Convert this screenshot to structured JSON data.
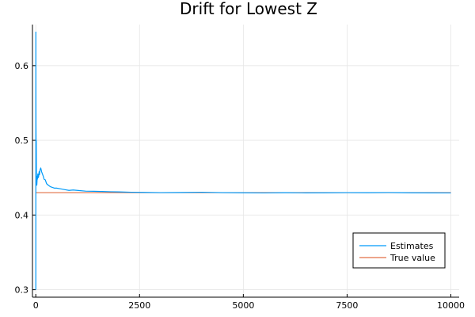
{
  "chart_data": {
    "type": "line",
    "title": "Drift for Lowest Z",
    "xlabel": "",
    "ylabel": "",
    "xlim": [
      -80,
      10200
    ],
    "ylim": [
      0.29,
      0.655
    ],
    "x_ticks": [
      0,
      2500,
      5000,
      7500,
      10000
    ],
    "x_tick_labels": [
      "0",
      "2500",
      "5000",
      "7500",
      "10000"
    ],
    "y_ticks": [
      0.3,
      0.4,
      0.5,
      0.6
    ],
    "y_tick_labels": [
      "0.3",
      "0.4",
      "0.5",
      "0.6"
    ],
    "grid": true,
    "legend_position": "bottom-right",
    "colors": {
      "estimates": "#009af9",
      "true_value": "#e26f46"
    },
    "series": [
      {
        "name": "Estimates",
        "x": [
          1,
          2,
          3,
          5,
          8,
          10,
          12,
          15,
          18,
          20,
          25,
          30,
          35,
          40,
          50,
          60,
          70,
          80,
          90,
          100,
          120,
          140,
          160,
          180,
          200,
          230,
          260,
          300,
          350,
          400,
          450,
          500,
          600,
          700,
          800,
          900,
          1000,
          1200,
          1400,
          1600,
          1800,
          2000,
          2300,
          2600,
          3000,
          3500,
          4000,
          4500,
          5000,
          5500,
          6000,
          6500,
          7000,
          7500,
          8000,
          8500,
          9000,
          9500,
          10000
        ],
        "y": [
          0.3,
          0.645,
          0.58,
          0.52,
          0.49,
          0.47,
          0.5,
          0.46,
          0.44,
          0.45,
          0.44,
          0.445,
          0.452,
          0.448,
          0.455,
          0.45,
          0.452,
          0.458,
          0.454,
          0.46,
          0.463,
          0.458,
          0.455,
          0.452,
          0.448,
          0.447,
          0.442,
          0.44,
          0.438,
          0.437,
          0.436,
          0.436,
          0.435,
          0.434,
          0.433,
          0.4335,
          0.433,
          0.432,
          0.4318,
          0.4315,
          0.4312,
          0.431,
          0.4305,
          0.4303,
          0.43,
          0.4302,
          0.4305,
          0.43,
          0.4298,
          0.4296,
          0.4299,
          0.4297,
          0.4298,
          0.43,
          0.4299,
          0.4301,
          0.4298,
          0.4297,
          0.4296
        ]
      },
      {
        "name": "True value",
        "x": [
          1,
          10000
        ],
        "y": [
          0.43,
          0.43
        ]
      }
    ]
  }
}
